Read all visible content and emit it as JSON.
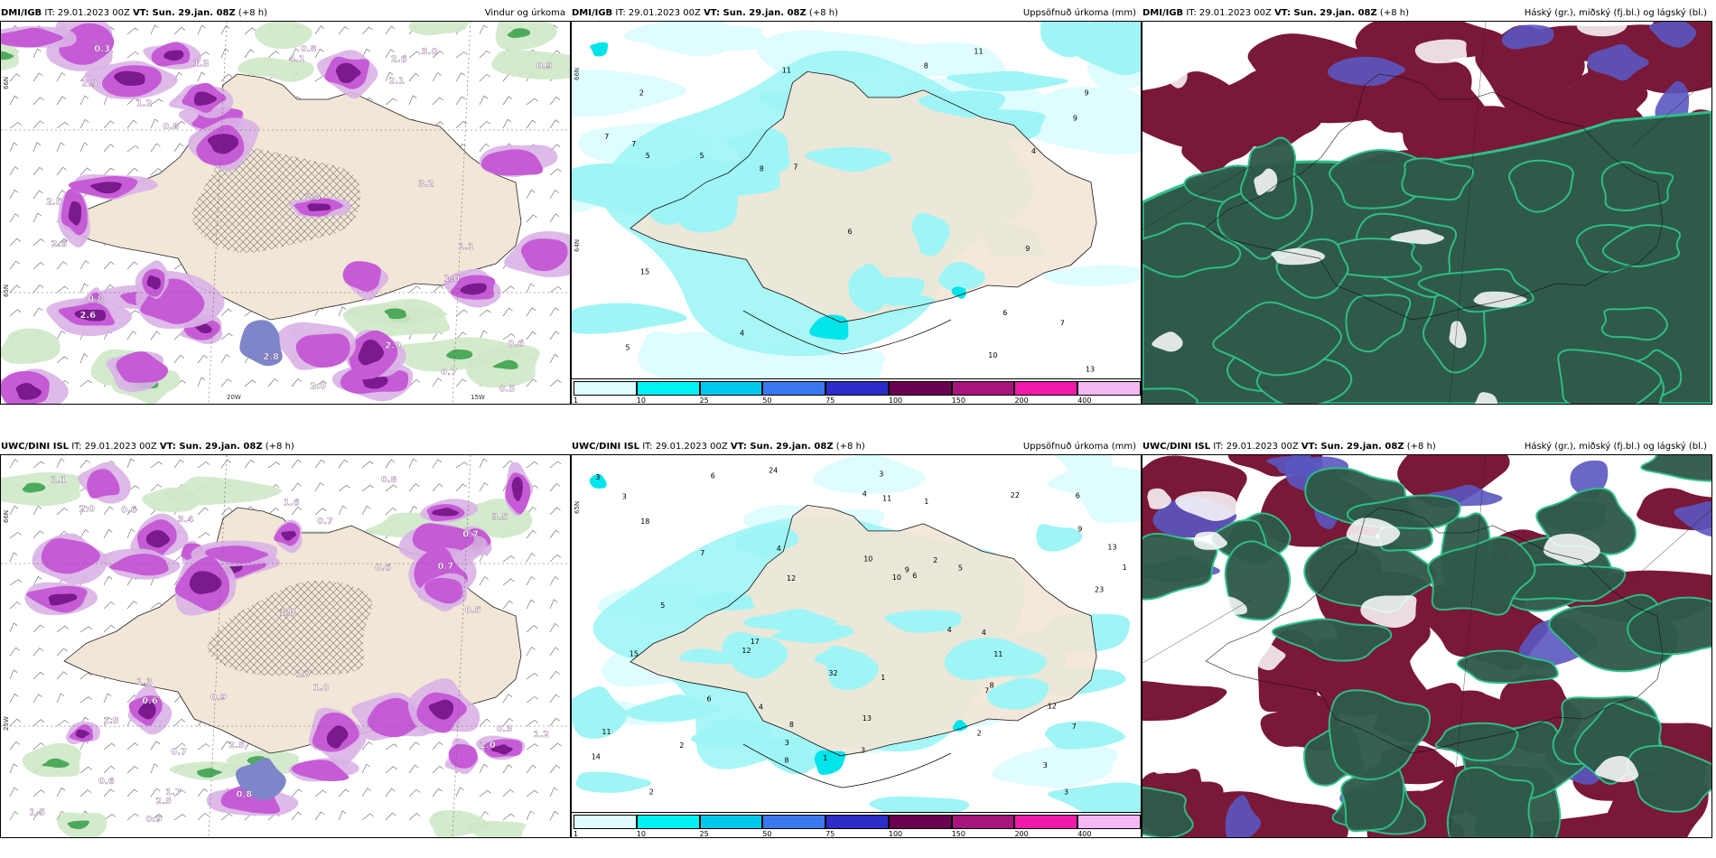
{
  "panels": [
    {
      "id": "p1",
      "header": {
        "source": "DMI/IGB",
        "it": " IT: 29.01.2023 00Z ",
        "vt_label": "VT:",
        "vt_value": " Sun. 29.jan. 08Z",
        "lead": " (+8 h)",
        "right": "Vindur og úrkoma"
      },
      "kind": "wind-precip",
      "labels": [
        "0.8",
        "0.8",
        "2.9",
        "3.2",
        "2.8",
        "2.6",
        "2.6",
        "2.6",
        "2.0",
        "1.2",
        "1.8",
        "2.9",
        "0.6",
        "0.5",
        "0.8",
        "0.9",
        "1.3",
        "2.1",
        "1.1",
        "1.0",
        "0.7",
        "0.3",
        "4.1",
        "3.0",
        "2.5"
      ],
      "axis": [
        "66N",
        "65N",
        "20W",
        "15W"
      ]
    },
    {
      "id": "p2",
      "header": {
        "source": "DMI/IGB",
        "it": " IT: 29.01.2023 00Z ",
        "vt_label": "VT:",
        "vt_value": " Sun. 29.jan. 08Z",
        "lead": " (+8 h)",
        "right": "Uppsöfnuð úrkoma (mm)"
      },
      "kind": "accum",
      "labels": [
        "4",
        "13",
        "11",
        "6",
        "7",
        "7",
        "9",
        "11",
        "8",
        "8",
        "7",
        "9",
        "10",
        "5",
        "5",
        "2",
        "7",
        "6",
        "4",
        "15",
        "9",
        "5"
      ],
      "axis": [
        "66N",
        "64N"
      ]
    },
    {
      "id": "p3",
      "header": {
        "source": "DMI/IGB",
        "it": " IT: 29.01.2023 00Z ",
        "vt_label": "VT:",
        "vt_value": " Sun. 29.jan. 08Z",
        "lead": " (+8 h)",
        "right": "Háský (gr.), miðský (fj.bl.) og lágský (bl.)"
      },
      "kind": "clouds",
      "variant": 1
    },
    {
      "id": "p4",
      "header": {
        "source": "UWC/DINI ISL",
        "it": " IT: 29.01.2023 00Z ",
        "vt_label": "VT:",
        "vt_value": " Sun. 29.jan. 08Z",
        "lead": " (+8 h)",
        "right": ""
      },
      "kind": "wind-precip",
      "labels": [
        "0.7",
        "0.7",
        "0.8",
        "0.7",
        "3.4",
        "2.5",
        "1.5",
        "1.5",
        "1.7",
        "2.0",
        "1.0",
        "2.5",
        "1.6",
        "1.7",
        "2.0",
        "3.5",
        "0.3",
        "0.6",
        "0.6",
        "0.5",
        "0.9",
        "1.2",
        "1.1",
        "0.9",
        "0.6",
        "0.7",
        "0.8",
        "0.6",
        "1.3",
        "1.0"
      ],
      "axis": [
        "66N",
        "25W"
      ]
    },
    {
      "id": "p5",
      "header": {
        "source": "UWC/DINI ISL",
        "it": " IT: 29.01.2023 00Z ",
        "vt_label": "VT:",
        "vt_value": " Sun. 29.jan. 08Z",
        "lead": " (+8 h)",
        "right": "Uppsöfnuð úrkoma (mm)"
      },
      "kind": "accum",
      "labels": [
        "17",
        "3",
        "4",
        "11",
        "13",
        "11",
        "2",
        "3",
        "1",
        "1",
        "1",
        "1",
        "4",
        "4",
        "3",
        "3",
        "7",
        "8",
        "10",
        "9",
        "12",
        "6",
        "3",
        "22",
        "24",
        "32",
        "8",
        "6",
        "10",
        "8",
        "12",
        "15",
        "14",
        "12",
        "2",
        "5",
        "4",
        "3",
        "2",
        "6",
        "7",
        "11",
        "13",
        "23",
        "18",
        "5",
        "2",
        "6",
        "4",
        "3",
        "7",
        "9"
      ],
      "axis": [
        "65N"
      ]
    },
    {
      "id": "p6",
      "header": {
        "source": "UWC/DINI ISL",
        "it": " IT: 29.01.2023 00Z ",
        "vt_label": "VT:",
        "vt_value": " Sun. 29.jan. 08Z",
        "lead": " (+8 h)",
        "right": "Háský (gr.), miðský (fj.bl.) og lágský (bl.)"
      },
      "kind": "clouds",
      "variant": 2
    }
  ],
  "colorbar": {
    "colors": [
      "#dffcff",
      "#00f2f2",
      "#00c8ec",
      "#3a78f0",
      "#2c2cc8",
      "#6a0050",
      "#a6147c",
      "#ee1aa8",
      "#f4b8f4"
    ],
    "ticks": [
      "1",
      "10",
      "25",
      "50",
      "75",
      "100",
      "150",
      "200",
      "400"
    ]
  },
  "colors": {
    "land": "#f2e6d6",
    "precip_light": "#d9b3e6",
    "precip_mid": "#c65bd6",
    "precip_heavy": "#7a1a8c",
    "precip_extreme": "#7c86c8",
    "green_light": "#cfe8c8",
    "green_mid": "#4caa5a",
    "accum_light": "#dffcff",
    "accum_mid": "#9ff5f5",
    "accum_cyan": "#00e4ea",
    "cloud_high": "#2f5a4a",
    "cloud_mid": "#5a56c0",
    "cloud_low": "#7a1838",
    "cloud_edge": "#2ec08a"
  }
}
